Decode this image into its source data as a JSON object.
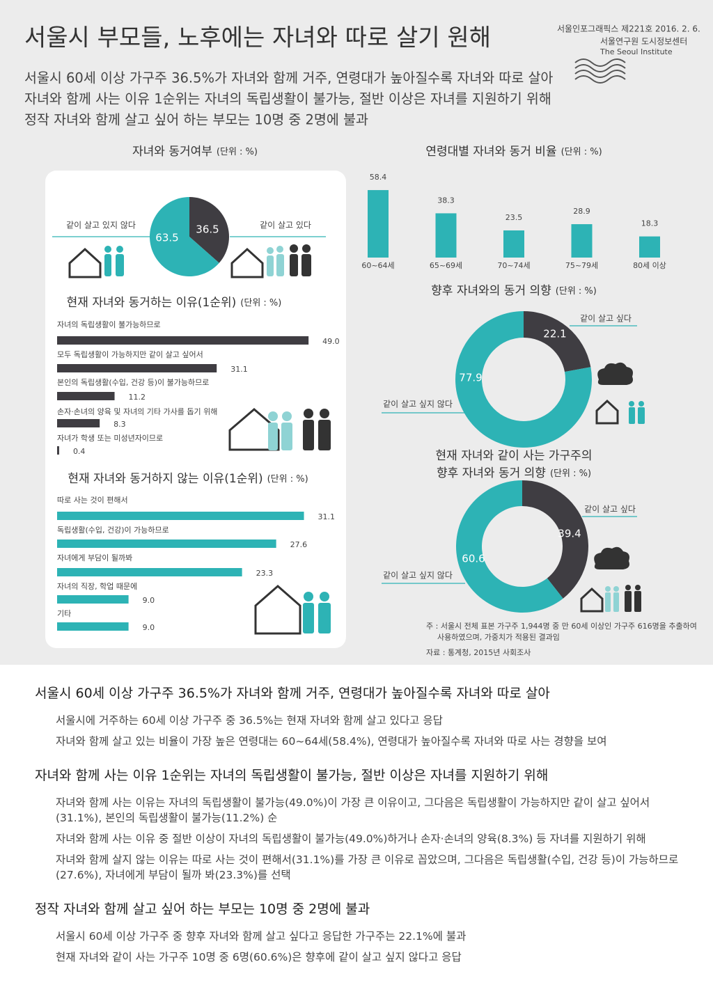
{
  "header": {
    "title": "서울시 부모들, 노후에는 자녀와 따로 살기 원해",
    "issue": "서울인포그래픽스 제221호 2016. 2. 6.",
    "org": "서울연구원 도시정보센터",
    "org_en": "The Seoul Institute",
    "summary": [
      "서울시 60세 이상 가구주 36.5%가 자녀와 함께 거주, 연령대가 높아질수록 자녀와 따로 살아",
      "자녀와 함께 사는 이유 1순위는 자녀의 독립생활이 불가능, 절반 이상은 자녀를 지원하기 위해",
      "정작 자녀와 함께 살고 싶어 하는 부모는 10명 중 2명에 불과"
    ]
  },
  "chart_data": [
    {
      "type": "pie",
      "title": "자녀와 동거여부",
      "unit": "(단위 : %)",
      "categories": [
        "같이 살고 있다",
        "같이 살고 있지 않다"
      ],
      "values": [
        36.5,
        63.5
      ],
      "colors": [
        "#3f3d42",
        "#2db3b5"
      ]
    },
    {
      "type": "bar",
      "title": "연령대별 자녀와 동거 비율",
      "unit": "(단위 : %)",
      "categories": [
        "60~64세",
        "65~69세",
        "70~74세",
        "75~79세",
        "80세 이상"
      ],
      "values": [
        58.4,
        38.3,
        23.5,
        28.9,
        18.3
      ],
      "color": "#2db3b5"
    },
    {
      "type": "hbar",
      "title": "현재 자녀와 동거하는 이유(1순위)",
      "unit": "(단위 : %)",
      "categories": [
        "자녀의 독립생활이 불가능하므로",
        "모두 독립생활이 가능하지만 같이 살고 싶어서",
        "본인의 독립생활(수입, 건강 등)이 불가능하므로",
        "손자·손녀의 양육 및 자녀의 기타 가사를 돕기 위해",
        "자녀가 학생 또는 미성년자이므로"
      ],
      "values": [
        49.0,
        31.1,
        11.2,
        8.3,
        0.4
      ],
      "value_labels": [
        "49.0",
        "31.1",
        "11.2",
        "8.3",
        "0.4"
      ],
      "color": "#3f3d42"
    },
    {
      "type": "hbar",
      "title": "현재 자녀와 동거하지 않는 이유(1순위)",
      "unit": "(단위 : %)",
      "categories": [
        "따로 사는 것이 편해서",
        "독립생활(수입, 건강)이 가능하므로",
        "자녀에게 부담이 될까봐",
        "자녀의 직장, 학업 때문에",
        "기타"
      ],
      "values": [
        31.1,
        27.6,
        23.3,
        9.0,
        9.0
      ],
      "value_labels": [
        "31.1",
        "27.6",
        "23.3",
        "9.0",
        "9.0"
      ],
      "color": "#2db3b5"
    },
    {
      "type": "donut",
      "title": "향후 자녀와의 동거 의향",
      "unit": "(단위 : %)",
      "categories": [
        "같이 살고 싶다",
        "같이 살고 싶지 않다"
      ],
      "values": [
        22.1,
        77.9
      ],
      "colors": [
        "#3f3d42",
        "#2db3b5"
      ]
    },
    {
      "type": "donut",
      "title": [
        "현재 자녀와 같이 사는 가구주의",
        "향후 자녀와 동거 의향"
      ],
      "unit": "(단위 : %)",
      "categories": [
        "같이 살고 싶다",
        "같이 살고 싶지 않다"
      ],
      "values": [
        39.4,
        60.6
      ],
      "colors": [
        "#3f3d42",
        "#2db3b5"
      ]
    }
  ],
  "notes": [
    "주 : 서울시 전체 표본 가구주 1,944명 중 만 60세 이상인 가구주 616명을 추출하여",
    "사용하였으며, 가중치가 적용된 결과임",
    "자료 : 통계청, 2015년 사회조사"
  ],
  "sections": [
    {
      "heading": "서울시 60세 이상 가구주 36.5%가 자녀와 함께 거주, 연령대가 높아질수록 자녀와 따로 살아",
      "paragraphs": [
        "서울시에 거주하는 60세 이상 가구주 중 36.5%는 현재 자녀와 함께 살고 있다고 응답",
        "자녀와 함께 살고 있는 비율이 가장 높은 연령대는 60~64세(58.4%), 연령대가 높아질수록 자녀와 따로 사는 경향을 보여"
      ]
    },
    {
      "heading": "자녀와 함께 사는 이유 1순위는 자녀의 독립생활이 불가능, 절반 이상은 자녀를 지원하기 위해",
      "paragraphs": [
        "자녀와 함께 사는 이유는 자녀의 독립생활이 불가능(49.0%)이 가장 큰 이유이고, 그다음은 독립생활이 가능하지만 같이 살고 싶어서(31.1%), 본인의 독립생활이 불가능(11.2%) 순",
        "자녀와 함께 사는 이유 중 절반 이상이 자녀의 독립생활이 불가능(49.0%)하거나 손자·손녀의 양육(8.3%) 등 자녀를 지원하기 위해",
        "자녀와 함께 살지 않는 이유는 따로 사는 것이 편해서(31.1%)를 가장 큰 이유로 꼽았으며, 그다음은 독립생활(수입, 건강 등)이 가능하므로(27.6%), 자녀에게 부담이 될까 봐(23.3%)를 선택"
      ]
    },
    {
      "heading": "정작 자녀와 함께 살고 싶어 하는 부모는 10명 중 2명에 불과",
      "paragraphs": [
        "서울시 60세 이상 가구주 중 향후 자녀와 함께 살고 싶다고 응답한 가구주는 22.1%에 불과",
        "현재 자녀와 같이 사는 가구주 10명 중 6명(60.6%)은 향후에 같이 살고 싶지 않다고 응답"
      ]
    }
  ]
}
